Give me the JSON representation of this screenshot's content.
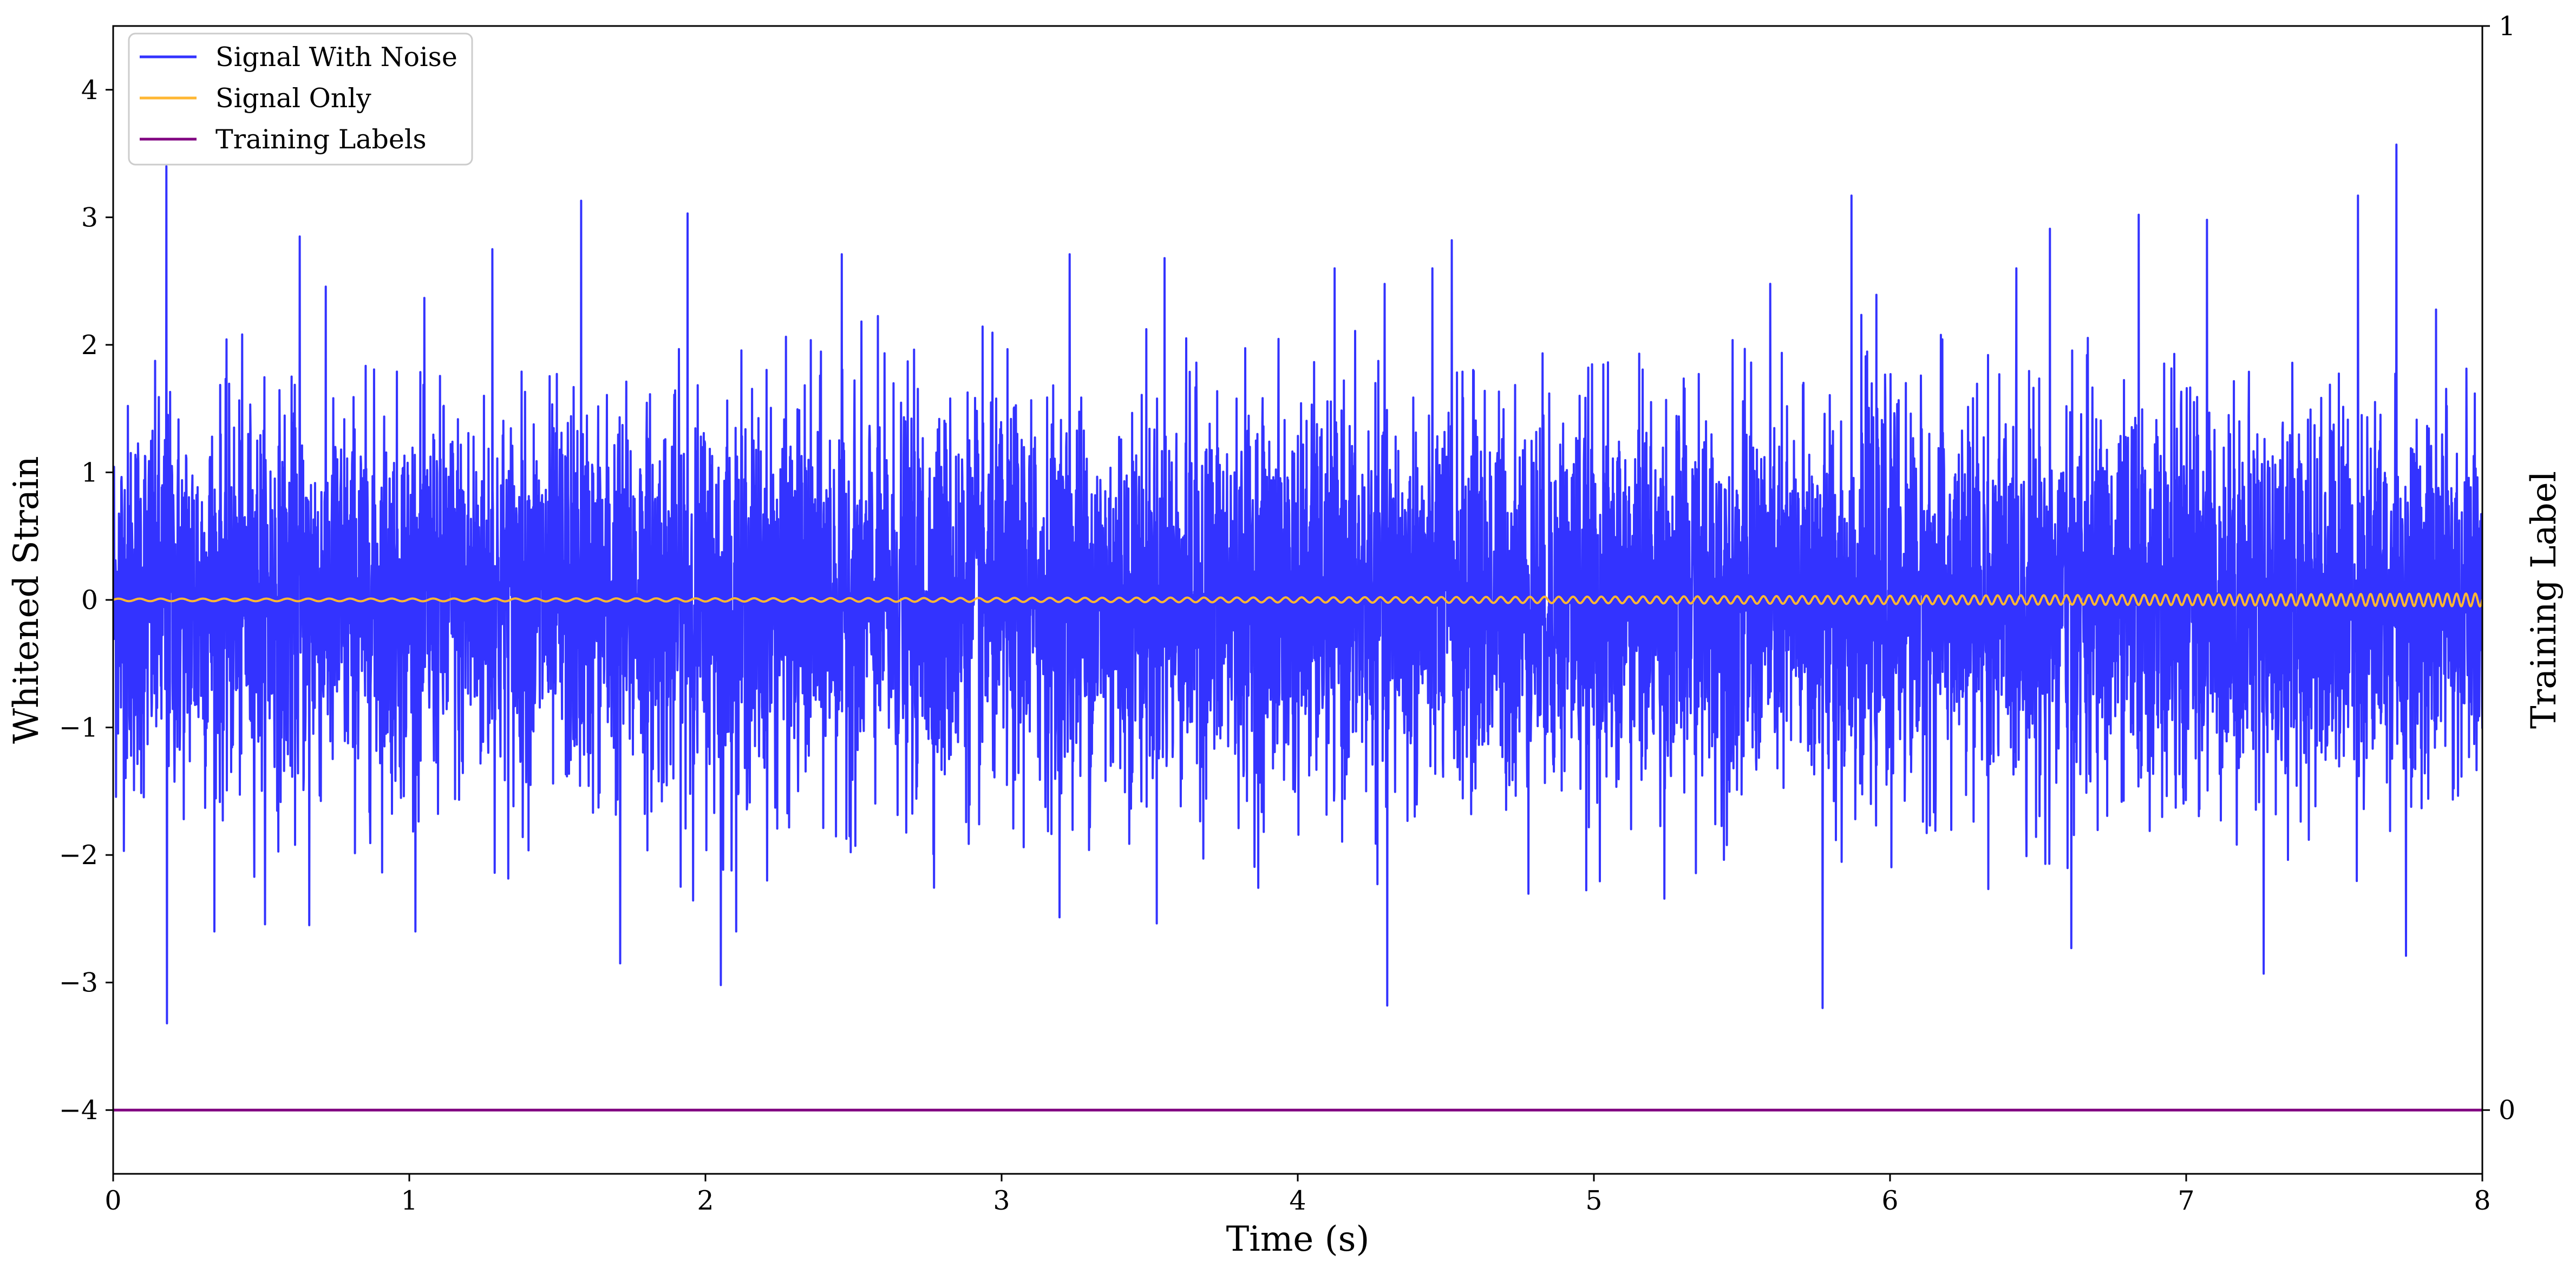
{
  "chart_data": {
    "type": "line",
    "xlabel": "Time (s)",
    "ylabel": "Whitened Strain",
    "ylabel_right": "Training Label",
    "xlim": [
      0,
      8
    ],
    "ylim": [
      -4.5,
      4.5
    ],
    "xticks": [
      0,
      1,
      2,
      3,
      4,
      5,
      6,
      7,
      8
    ],
    "yticks": [
      -4,
      -3,
      -2,
      -1,
      0,
      1,
      2,
      3,
      4
    ],
    "yticks_right": [
      0,
      1
    ],
    "grid": false,
    "legend_position": "upper-left",
    "series": [
      {
        "name": "Signal With Noise",
        "color": "#3333ff",
        "description_points": {
          "spike_times": [
            0.18,
            0.63,
            1.28,
            1.58,
            1.94,
            2.46,
            3.23,
            3.55,
            4.52,
            5.87,
            6.54,
            6.84,
            7.07,
            7.58,
            7.71
          ],
          "spike_values": [
            3.4,
            2.85,
            2.75,
            3.13,
            3.03,
            2.71,
            2.71,
            2.68,
            2.82,
            3.17,
            2.91,
            3.02,
            2.98,
            3.17,
            3.57
          ],
          "dip_times": [
            0.18,
            0.66,
            1.71,
            2.05,
            4.3,
            5.77,
            6.61,
            7.26,
            7.74
          ],
          "dip_values": [
            -3.32,
            -2.55,
            -2.85,
            -3.02,
            -3.18,
            -3.2,
            -2.73,
            -2.93,
            -2.79
          ],
          "noise_std": 0.75
        }
      },
      {
        "name": "Signal Only",
        "color": "#ffb733",
        "x_range": [
          0,
          8
        ],
        "amplitude_start": 0.01,
        "amplitude_end": 0.05,
        "frequency_start_hz": 14,
        "frequency_end_hz": 32
      },
      {
        "name": "Training Labels",
        "color": "#800080",
        "axis": "right",
        "x": [
          0,
          8
        ],
        "y": [
          0,
          0
        ]
      }
    ]
  }
}
